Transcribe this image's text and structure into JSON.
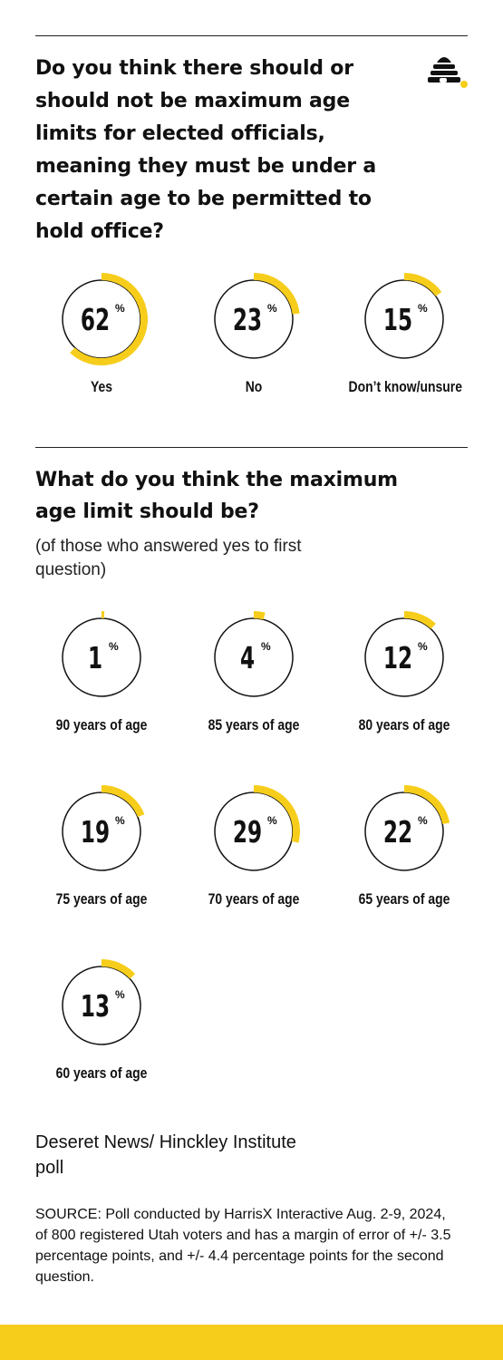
{
  "question1": "Do you think there should or should not be maximum age limits for elected officials, meaning they must be under a certain age to be permitted to hold office?",
  "question2": {
    "title": "What do you think the maximum age limit should be?",
    "subtitle": "(of those who answered yes to first question)"
  },
  "percent_sign": "%",
  "credit": "Deseret News/ Hinckley Institute poll",
  "source": "SOURCE: Poll conducted by HarrisX Interactive Aug. 2-9, 2024, of 800 registered Utah voters and has a margin of error of +/- 3.5 percentage points, and +/- 4.4 percentage points for the second question.",
  "colors": {
    "accent": "#f7cd1b",
    "text": "#111111",
    "rule": "#222222"
  },
  "icons": {
    "logo": "beehive-icon"
  },
  "chart_data": [
    {
      "type": "pie",
      "title": "Do you think there should or should not be maximum age limits for elected officials, meaning they must be under a certain age to be permitted to hold office?",
      "categories": [
        "Yes",
        "No",
        "Don’t know/unsure"
      ],
      "values": [
        62,
        23,
        15
      ]
    },
    {
      "type": "pie",
      "title": "What do you think the maximum age limit should be?",
      "subtitle": "(of those who answered yes to first question)",
      "categories": [
        "90 years of age",
        "85 years of age",
        "80 years of age",
        "75 years of age",
        "70 years of age",
        "65 years of age",
        "60 years of age"
      ],
      "values": [
        1,
        4,
        12,
        19,
        29,
        22,
        13
      ]
    }
  ]
}
